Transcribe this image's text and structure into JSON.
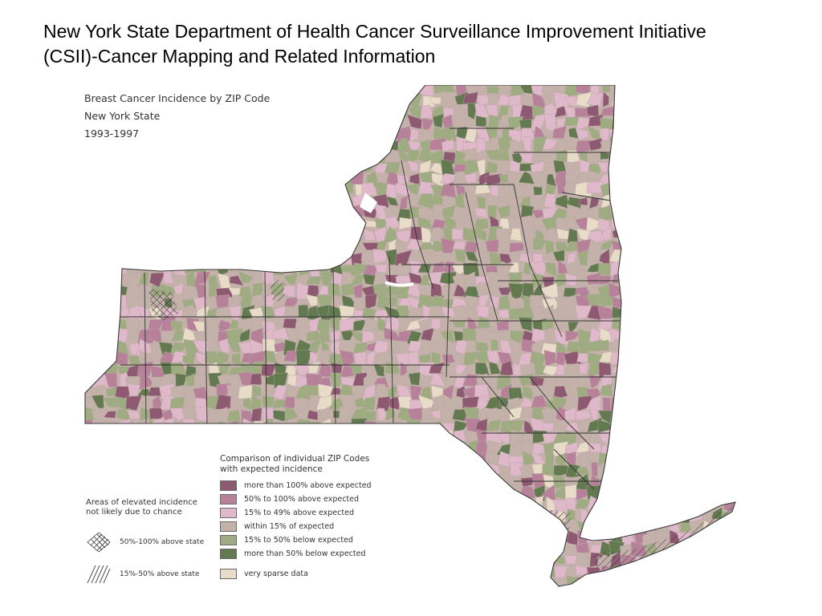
{
  "slide": {
    "title_line1": "New York State Department of Health Cancer Surveillance Improvement Initiative",
    "title_line2": "(CSII)-Cancer Mapping and Related Information"
  },
  "map": {
    "title_line1": "Breast Cancer Incidence by ZIP Code",
    "title_line2": "New York State",
    "title_line3": "1993-1997"
  },
  "legend": {
    "title_line1": "Comparison of individual ZIP Codes",
    "title_line2": "with expected incidence",
    "items": [
      {
        "label": "more than 100% above expected",
        "color": "#8e5a72"
      },
      {
        "label": "50% to 100% above expected",
        "color": "#b7819a"
      },
      {
        "label": "15% to 49% above expected",
        "color": "#dfb8c9"
      },
      {
        "label": "within 15% of expected",
        "color": "#c4b2aa"
      },
      {
        "label": "15% to 50% below expected",
        "color": "#9fab80"
      },
      {
        "label": "more than 50% below expected",
        "color": "#637a50"
      },
      {
        "label": "very sparse data",
        "color": "#e8dcc8"
      }
    ]
  },
  "hatch_legend": {
    "title_line1": "Areas of elevated incidence",
    "title_line2": "not likely due to chance",
    "items": [
      {
        "label": "50%-100% above state",
        "icon": "crosshatch-icon"
      },
      {
        "label": "15%-50% above state",
        "icon": "diagonal-hatch-icon"
      }
    ]
  }
}
